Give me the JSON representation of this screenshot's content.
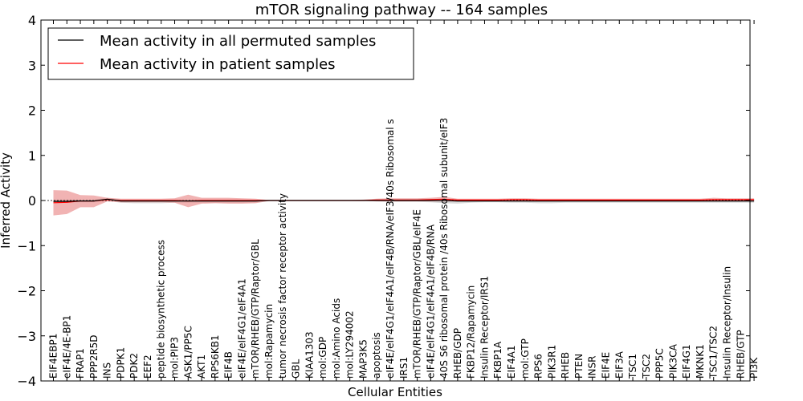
{
  "chart_data": {
    "type": "line",
    "title": "mTOR signaling pathway -- 164 samples",
    "xlabel": "Cellular Entities",
    "ylabel": "Inferred Activity",
    "ylim": [
      -4,
      4
    ],
    "yticks": [
      -4,
      -3,
      -2,
      -1,
      0,
      1,
      2,
      3,
      4
    ],
    "ytick_labels": [
      "−4",
      "−3",
      "−2",
      "−1",
      "0",
      "1",
      "2",
      "3",
      "4"
    ],
    "legend": {
      "position": "top-left",
      "entries": [
        {
          "label": "Mean activity in all permuted samples",
          "color": "#000000"
        },
        {
          "label": "Mean activity in patient samples",
          "color": "#ff0000"
        }
      ]
    },
    "categories": [
      "EIF4EBP1",
      "eIF4E/4E-BP1",
      "FRAP1",
      "PPP2R5D",
      "INS",
      "PDPK1",
      "PDK2",
      "EEF2",
      "peptide biosynthetic process",
      "mol:PIP3",
      "ASK1/PP5C",
      "AKT1",
      "RPS6KB1",
      "EIF4B",
      "eIF4E/eIF4G1/eIF4A1",
      "mTOR/RHEB/GTP/Raptor/GBL",
      "mol:Rapamycin",
      "tumor necrosis factor receptor activity",
      "GBL",
      "KIAA1303",
      "mol:GDP",
      "mol:Amino Acids",
      "mol:LY294002",
      "MAP3K5",
      "apoptosis",
      "eIF4E/eIF4G1/eIF4A1/eIF4B/RNA/eIF3/40s Ribosomal s",
      "IRS1",
      "mTOR/RHEB/GTP/Raptor/GBL/eIF4E",
      "eIF4E/eIF4G1/eIF4A1/eIF4B/RNA",
      "40S S6 ribosomal protein /40s Ribosomal subunit/eIF3",
      "RHEB/GDP",
      "FKBP12/Rapamycin",
      "Insulin Receptor/IRS1",
      "FKBP1A",
      "EIF4A1",
      "mol:GTP",
      "RPS6",
      "PIK3R1",
      "RHEB",
      "PTEN",
      "INSR",
      "EIF4E",
      "EIF3A",
      "TSC1",
      "TSC2",
      "PPP5C",
      "PIK3CA",
      "EIF4G1",
      "MKNK1",
      "TSC1/TSC2",
      "Insulin Receptor/Insulin",
      "RHEB/GTP",
      "PI3K"
    ],
    "series": [
      {
        "name": "Mean activity in all permuted samples",
        "color": "#000000",
        "band_color": "#aaaaaa",
        "values": [
          -0.02,
          -0.02,
          -0.01,
          -0.01,
          0.03,
          -0.01,
          -0.01,
          -0.01,
          -0.01,
          -0.01,
          -0.01,
          -0.01,
          -0.01,
          -0.01,
          -0.01,
          -0.01,
          0,
          0,
          0,
          0,
          0,
          0,
          0,
          0,
          0,
          0,
          0,
          0,
          0,
          0,
          -0.01,
          -0.01,
          -0.01,
          -0.01,
          -0.01,
          -0.01,
          -0.01,
          -0.01,
          -0.01,
          -0.01,
          -0.01,
          -0.01,
          -0.01,
          -0.01,
          -0.01,
          -0.01,
          -0.01,
          -0.01,
          -0.01,
          -0.01,
          -0.01,
          -0.01,
          -0.01
        ],
        "lower": [
          -0.05,
          -0.05,
          -0.04,
          -0.04,
          -0.01,
          -0.05,
          -0.06,
          -0.06,
          -0.06,
          -0.05,
          -0.05,
          -0.05,
          -0.05,
          -0.05,
          -0.05,
          -0.04,
          -0.01,
          -0.01,
          -0.01,
          -0.01,
          -0.01,
          -0.01,
          -0.01,
          -0.01,
          -0.02,
          -0.03,
          -0.03,
          -0.03,
          -0.04,
          -0.06,
          -0.07,
          -0.05,
          -0.04,
          -0.04,
          -0.05,
          -0.05,
          -0.06,
          -0.06,
          -0.05,
          -0.05,
          -0.05,
          -0.05,
          -0.05,
          -0.05,
          -0.05,
          -0.05,
          -0.05,
          -0.05,
          -0.05,
          -0.05,
          -0.05,
          -0.05,
          -0.05
        ],
        "upper": [
          0.02,
          0.02,
          0.02,
          0.02,
          0.06,
          0.02,
          0.02,
          0.02,
          0.02,
          0.02,
          0.02,
          0.02,
          0.02,
          0.02,
          0.02,
          0.02,
          0.01,
          0.01,
          0.01,
          0.01,
          0.01,
          0.01,
          0.01,
          0.01,
          0.01,
          0.02,
          0.02,
          0.02,
          0.02,
          0.02,
          0.02,
          0.02,
          0.02,
          0.02,
          0.02,
          0.02,
          0.02,
          0.02,
          0.02,
          0.02,
          0.02,
          0.02,
          0.02,
          0.02,
          0.02,
          0.02,
          0.02,
          0.02,
          0.02,
          0.02,
          0.02,
          0.02,
          0.02
        ]
      },
      {
        "name": "Mean activity in patient samples",
        "color": "#ff0000",
        "band_color": "#e88080",
        "values": [
          -0.05,
          -0.04,
          -0.01,
          -0.01,
          0.02,
          0,
          0,
          0,
          0,
          0,
          -0.01,
          0,
          0,
          0,
          0,
          0,
          0,
          0,
          0,
          0,
          0,
          0,
          0,
          0,
          0.01,
          0.01,
          0.01,
          0.01,
          0.02,
          0.03,
          0.01,
          0.01,
          0.01,
          0.01,
          0.02,
          0.02,
          0.01,
          0.01,
          0.01,
          0.01,
          0.01,
          0.01,
          0.01,
          0.01,
          0.01,
          0.01,
          0.01,
          0.01,
          0.01,
          0.02,
          0.02,
          0.02,
          0.02
        ],
        "lower": [
          -0.33,
          -0.3,
          -0.15,
          -0.15,
          -0.02,
          -0.04,
          -0.04,
          -0.04,
          -0.04,
          -0.05,
          -0.15,
          -0.07,
          -0.06,
          -0.07,
          -0.07,
          -0.06,
          -0.01,
          -0.01,
          -0.01,
          -0.01,
          -0.01,
          -0.01,
          -0.01,
          -0.01,
          -0.02,
          -0.02,
          -0.02,
          -0.02,
          -0.02,
          -0.02,
          -0.02,
          -0.02,
          -0.02,
          -0.02,
          -0.02,
          -0.02,
          -0.02,
          -0.02,
          -0.02,
          -0.02,
          -0.02,
          -0.02,
          -0.02,
          -0.02,
          -0.02,
          -0.02,
          -0.02,
          -0.02,
          -0.02,
          -0.02,
          -0.02,
          -0.02,
          -0.02
        ],
        "upper": [
          0.23,
          0.22,
          0.12,
          0.11,
          0.06,
          0.04,
          0.04,
          0.04,
          0.04,
          0.05,
          0.13,
          0.06,
          0.06,
          0.06,
          0.05,
          0.04,
          0.01,
          0.01,
          0.01,
          0.01,
          0.01,
          0.01,
          0.01,
          0.02,
          0.04,
          0.05,
          0.05,
          0.05,
          0.06,
          0.08,
          0.04,
          0.04,
          0.04,
          0.04,
          0.05,
          0.05,
          0.04,
          0.04,
          0.04,
          0.04,
          0.04,
          0.04,
          0.04,
          0.04,
          0.04,
          0.04,
          0.04,
          0.04,
          0.04,
          0.06,
          0.05,
          0.05,
          0.05
        ]
      }
    ]
  }
}
